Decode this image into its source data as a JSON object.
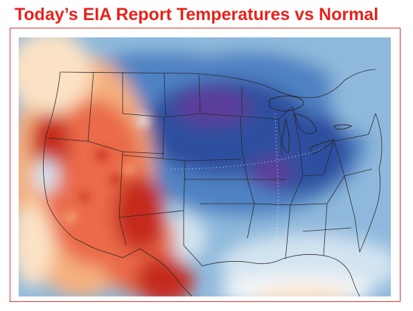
{
  "header": {
    "title": "Today’s EIA Report Temperatures vs Normal"
  },
  "colors": {
    "title": "#e8211b",
    "frame_border": "#d32f2f",
    "warm_strong": "#c62a1c",
    "warm_mid": "#ea6a4a",
    "warm_light": "#f5b07f",
    "warm_pale": "#fbe2c5",
    "neutral": "#f4f6f8",
    "cool_pale": "#d3e4f1",
    "cool_light": "#8fb9dc",
    "cool_mid": "#4f82c2",
    "cool_strong": "#2f4f9f",
    "cold_core": "#5b3d9a",
    "borders": "#262626"
  },
  "map": {
    "subject": "Temperature anomaly map of the contiguous United States",
    "pattern": {
      "west": "above normal",
      "central_and_east": "below normal",
      "coldest_area": "northern plains",
      "warmest_area": "southwest"
    }
  }
}
